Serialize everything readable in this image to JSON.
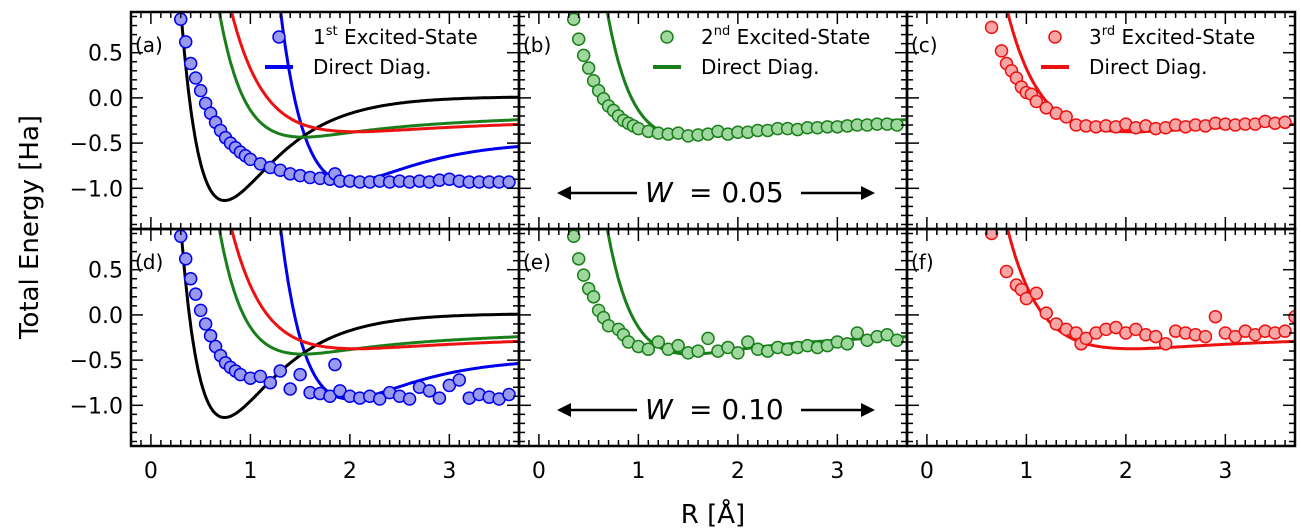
{
  "figure": {
    "ylabel": "Total Energy [Ha]",
    "xlabel": "R [Å]",
    "row_annotations": [
      {
        "symbol": "W",
        "text": "= 0.05"
      },
      {
        "symbol": "W",
        "text": "= 0.10"
      }
    ],
    "legend_texts": {
      "excited": [
        {
          "prefix": "1",
          "sup": "st",
          "rest": " Excited-State"
        },
        {
          "prefix": "2",
          "sup": "nd",
          "rest": " Excited-State"
        },
        {
          "prefix": "3",
          "sup": "rd",
          "rest": " Excited-State"
        }
      ],
      "direct": "Direct Diag."
    }
  },
  "colors": {
    "blue": "#0000ee",
    "blue_fill": "#9999ee",
    "green": "#1a7f1a",
    "green_fill": "#9fd89f",
    "red": "#ee1111",
    "red_fill": "#f7a6a6",
    "black": "#000000"
  },
  "chart_data": [
    {
      "type": "line",
      "panel": "(a)",
      "xlim": [
        -0.2,
        3.7
      ],
      "ylim": [
        -1.45,
        0.95
      ],
      "xticks": [
        "0",
        "1",
        "2",
        "3"
      ],
      "yticks": [
        "0.5",
        "0.0",
        "−0.5",
        "−1.0"
      ],
      "series": [
        {
          "name": "1st Excited-State",
          "kind": "markers",
          "color": "blue",
          "x": [
            0.3,
            0.35,
            0.4,
            0.45,
            0.5,
            0.55,
            0.6,
            0.65,
            0.7,
            0.75,
            0.8,
            0.85,
            0.9,
            0.95,
            1.0,
            1.1,
            1.2,
            1.3,
            1.4,
            1.5,
            1.6,
            1.7,
            1.8,
            1.85,
            1.9,
            2.0,
            2.1,
            2.2,
            2.3,
            2.4,
            2.5,
            2.6,
            2.7,
            2.8,
            2.9,
            3.0,
            3.1,
            3.2,
            3.3,
            3.4,
            3.5,
            3.6
          ],
          "y": [
            0.87,
            0.62,
            0.38,
            0.22,
            0.08,
            -0.06,
            -0.17,
            -0.27,
            -0.36,
            -0.44,
            -0.5,
            -0.55,
            -0.6,
            -0.64,
            -0.68,
            -0.73,
            -0.77,
            -0.8,
            -0.84,
            -0.86,
            -0.88,
            -0.89,
            -0.9,
            -0.84,
            -0.92,
            -0.92,
            -0.93,
            -0.93,
            -0.92,
            -0.93,
            -0.92,
            -0.93,
            -0.92,
            -0.93,
            -0.91,
            -0.9,
            -0.92,
            -0.93,
            -0.93,
            -0.93,
            -0.93,
            -0.93
          ]
        },
        {
          "name": "Direct Diag.",
          "kind": "line",
          "color": "blue",
          "curve": "s1"
        },
        {
          "kind": "line",
          "color": "black",
          "curve": "s0"
        },
        {
          "kind": "line",
          "color": "green",
          "curve": "s2"
        },
        {
          "kind": "line",
          "color": "red",
          "curve": "s3"
        }
      ]
    },
    {
      "type": "line",
      "panel": "(b)",
      "xlim": [
        -0.2,
        3.7
      ],
      "ylim": [
        -1.45,
        0.95
      ],
      "xticks": [
        "0",
        "1",
        "2",
        "3"
      ],
      "yticks": [],
      "series": [
        {
          "name": "2nd Excited-State",
          "kind": "markers",
          "color": "green",
          "x": [
            0.35,
            0.4,
            0.45,
            0.5,
            0.55,
            0.6,
            0.65,
            0.7,
            0.75,
            0.8,
            0.85,
            0.9,
            0.95,
            1.0,
            1.1,
            1.2,
            1.3,
            1.4,
            1.5,
            1.6,
            1.7,
            1.8,
            1.9,
            2.0,
            2.1,
            2.2,
            2.3,
            2.4,
            2.5,
            2.6,
            2.7,
            2.8,
            2.9,
            3.0,
            3.1,
            3.2,
            3.3,
            3.4,
            3.5,
            3.6
          ],
          "y": [
            0.87,
            0.65,
            0.47,
            0.33,
            0.19,
            0.08,
            -0.01,
            -0.09,
            -0.14,
            -0.2,
            -0.25,
            -0.28,
            -0.31,
            -0.34,
            -0.37,
            -0.39,
            -0.4,
            -0.39,
            -0.42,
            -0.41,
            -0.4,
            -0.37,
            -0.4,
            -0.38,
            -0.38,
            -0.36,
            -0.36,
            -0.34,
            -0.34,
            -0.35,
            -0.33,
            -0.33,
            -0.32,
            -0.32,
            -0.31,
            -0.3,
            -0.3,
            -0.29,
            -0.29,
            -0.3
          ]
        },
        {
          "name": "Direct Diag.",
          "kind": "line",
          "color": "green",
          "curve": "s2"
        }
      ]
    },
    {
      "type": "line",
      "panel": "(c)",
      "xlim": [
        -0.2,
        3.7
      ],
      "ylim": [
        -1.45,
        0.95
      ],
      "xticks": [
        "0",
        "1",
        "2",
        "3"
      ],
      "yticks": [],
      "series": [
        {
          "name": "3rd Excited-State",
          "kind": "markers",
          "color": "red",
          "x": [
            0.65,
            0.75,
            0.8,
            0.85,
            0.9,
            0.95,
            1.0,
            1.05,
            1.1,
            1.2,
            1.3,
            1.4,
            1.5,
            1.6,
            1.7,
            1.8,
            1.9,
            2.0,
            2.1,
            2.2,
            2.3,
            2.4,
            2.5,
            2.6,
            2.7,
            2.8,
            2.9,
            3.0,
            3.1,
            3.2,
            3.3,
            3.4,
            3.5,
            3.6
          ],
          "y": [
            0.78,
            0.52,
            0.38,
            0.3,
            0.22,
            0.12,
            0.06,
            0.04,
            -0.04,
            -0.11,
            -0.17,
            -0.21,
            -0.3,
            -0.31,
            -0.32,
            -0.31,
            -0.32,
            -0.29,
            -0.33,
            -0.31,
            -0.34,
            -0.33,
            -0.3,
            -0.32,
            -0.3,
            -0.31,
            -0.28,
            -0.29,
            -0.3,
            -0.29,
            -0.29,
            -0.26,
            -0.28,
            -0.27
          ]
        },
        {
          "name": "Direct Diag.",
          "kind": "line",
          "color": "red",
          "curve": "s3"
        }
      ]
    },
    {
      "type": "line",
      "panel": "(d)",
      "xlim": [
        -0.2,
        3.7
      ],
      "ylim": [
        -1.45,
        0.95
      ],
      "xticks": [
        "0",
        "1",
        "2",
        "3"
      ],
      "yticks": [
        "0.5",
        "0.0",
        "−0.5",
        "−1.0"
      ],
      "series": [
        {
          "kind": "markers",
          "color": "blue",
          "x": [
            0.3,
            0.35,
            0.4,
            0.45,
            0.5,
            0.55,
            0.6,
            0.65,
            0.7,
            0.75,
            0.8,
            0.85,
            0.9,
            1.0,
            1.1,
            1.2,
            1.3,
            1.4,
            1.5,
            1.6,
            1.7,
            1.8,
            1.85,
            1.9,
            2.0,
            2.1,
            2.2,
            2.3,
            2.4,
            2.5,
            2.6,
            2.7,
            2.8,
            2.9,
            3.0,
            3.1,
            3.2,
            3.3,
            3.4,
            3.5,
            3.6
          ],
          "y": [
            0.87,
            0.62,
            0.4,
            0.23,
            0.05,
            -0.1,
            -0.23,
            -0.35,
            -0.45,
            -0.53,
            -0.58,
            -0.62,
            -0.66,
            -0.7,
            -0.68,
            -0.75,
            -0.62,
            -0.82,
            -0.66,
            -0.86,
            -0.87,
            -0.9,
            -0.55,
            -0.84,
            -0.9,
            -0.92,
            -0.9,
            -0.93,
            -0.86,
            -0.9,
            -0.93,
            -0.8,
            -0.84,
            -0.92,
            -0.78,
            -0.72,
            -0.92,
            -0.88,
            -0.91,
            -0.93,
            -0.88
          ]
        },
        {
          "kind": "line",
          "color": "blue",
          "curve": "s1"
        },
        {
          "kind": "line",
          "color": "black",
          "curve": "s0"
        },
        {
          "kind": "line",
          "color": "green",
          "curve": "s2"
        },
        {
          "kind": "line",
          "color": "red",
          "curve": "s3"
        }
      ]
    },
    {
      "type": "line",
      "panel": "(e)",
      "xlim": [
        -0.2,
        3.7
      ],
      "ylim": [
        -1.45,
        0.95
      ],
      "xticks": [
        "0",
        "1",
        "2",
        "3"
      ],
      "yticks": [],
      "series": [
        {
          "kind": "markers",
          "color": "green",
          "x": [
            0.35,
            0.4,
            0.45,
            0.5,
            0.55,
            0.6,
            0.65,
            0.7,
            0.8,
            0.85,
            0.9,
            1.0,
            1.1,
            1.2,
            1.3,
            1.4,
            1.5,
            1.6,
            1.7,
            1.8,
            1.9,
            2.0,
            2.1,
            2.2,
            2.3,
            2.4,
            2.5,
            2.6,
            2.7,
            2.8,
            2.9,
            3.0,
            3.1,
            3.2,
            3.3,
            3.4,
            3.5,
            3.6
          ],
          "y": [
            0.87,
            0.62,
            0.44,
            0.29,
            0.2,
            0.05,
            -0.03,
            -0.12,
            -0.16,
            -0.22,
            -0.3,
            -0.35,
            -0.38,
            -0.3,
            -0.38,
            -0.34,
            -0.42,
            -0.4,
            -0.26,
            -0.4,
            -0.36,
            -0.42,
            -0.3,
            -0.38,
            -0.4,
            -0.36,
            -0.38,
            -0.36,
            -0.34,
            -0.36,
            -0.34,
            -0.3,
            -0.32,
            -0.2,
            -0.28,
            -0.24,
            -0.22,
            -0.28
          ]
        },
        {
          "kind": "line",
          "color": "green",
          "curve": "s2"
        }
      ]
    },
    {
      "type": "line",
      "panel": "(f)",
      "xlim": [
        -0.2,
        3.7
      ],
      "ylim": [
        -1.45,
        0.95
      ],
      "xticks": [
        "0",
        "1",
        "2",
        "3"
      ],
      "yticks": [],
      "series": [
        {
          "kind": "markers",
          "color": "red",
          "x": [
            0.65,
            0.8,
            0.9,
            0.95,
            1.0,
            1.1,
            1.2,
            1.3,
            1.4,
            1.5,
            1.55,
            1.6,
            1.7,
            1.8,
            1.9,
            2.0,
            2.1,
            2.2,
            2.3,
            2.4,
            2.5,
            2.6,
            2.7,
            2.8,
            2.9,
            3.0,
            3.1,
            3.2,
            3.3,
            3.4,
            3.5,
            3.6,
            3.7
          ],
          "y": [
            0.9,
            0.48,
            0.33,
            0.28,
            0.18,
            0.24,
            0.02,
            -0.1,
            -0.16,
            -0.2,
            -0.32,
            -0.26,
            -0.2,
            -0.16,
            -0.14,
            -0.2,
            -0.16,
            -0.22,
            -0.24,
            -0.32,
            -0.18,
            -0.2,
            -0.22,
            -0.24,
            -0.02,
            -0.2,
            -0.24,
            -0.18,
            -0.22,
            -0.18,
            -0.2,
            -0.18,
            -0.02
          ]
        },
        {
          "kind": "line",
          "color": "red",
          "curve": "s3"
        }
      ]
    }
  ]
}
